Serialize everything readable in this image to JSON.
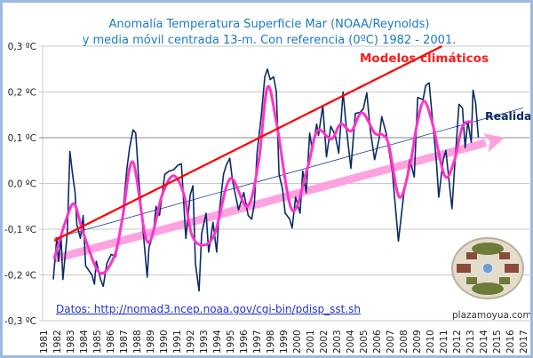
{
  "chart_data": {
    "type": "line",
    "title": "Anomalía Temperatura Superficie Mar (NOAA/Reynolds)",
    "subtitle": "y media móvil centrada 13-m. Con referencia (0ºC) 1982 - 2001.",
    "xlim": [
      1981,
      2017
    ],
    "ylim": [
      -0.3,
      0.3
    ],
    "x_ticks": [
      "1981",
      "1982",
      "1983",
      "1984",
      "1985",
      "1986",
      "1987",
      "1988",
      "1989",
      "1990",
      "1991",
      "1992",
      "1993",
      "1994",
      "1995",
      "1996",
      "1997",
      "1998",
      "1999",
      "2000",
      "2001",
      "2002",
      "2003",
      "2004",
      "2005",
      "2006",
      "2007",
      "2008",
      "2009",
      "2010",
      "2011",
      "2012",
      "2013",
      "2014",
      "2015",
      "2016",
      "2017"
    ],
    "y_ticks": [
      {
        "value": 0.3,
        "label": "0,3 ºC"
      },
      {
        "value": 0.2,
        "label": "0,2 ºC"
      },
      {
        "value": 0.1,
        "label": "0,1 ºC"
      },
      {
        "value": 0.0,
        "label": "0,0 ºC"
      },
      {
        "value": -0.1,
        "label": "-0,1 ºC"
      },
      {
        "value": -0.2,
        "label": "-0,2 ºC"
      },
      {
        "value": -0.3,
        "label": "-0,3 ºC"
      }
    ],
    "grid": "horizontal",
    "colors": {
      "monthly": "#0b2a66",
      "moving_average": "#ff33cc",
      "models": "#ff0000",
      "reality_arrow": "#ff99dd",
      "trend": "#1f3f8f",
      "title": "#1a7ac8",
      "border": "#9db9e3"
    },
    "series": [
      {
        "key": "monthly",
        "points": [
          [
            1981.73,
            -0.21
          ],
          [
            1981.99,
            -0.12
          ],
          [
            1982.12,
            -0.17
          ],
          [
            1982.32,
            -0.12
          ],
          [
            1982.45,
            -0.21
          ],
          [
            1982.78,
            -0.11
          ],
          [
            1982.98,
            0.07
          ],
          [
            1983.18,
            0.02
          ],
          [
            1983.37,
            -0.02
          ],
          [
            1983.5,
            -0.09
          ],
          [
            1983.77,
            -0.12
          ],
          [
            1983.97,
            -0.07
          ],
          [
            1984.16,
            -0.18
          ],
          [
            1984.63,
            -0.2
          ],
          [
            1984.82,
            -0.22
          ],
          [
            1984.96,
            -0.17
          ],
          [
            1985.28,
            -0.21
          ],
          [
            1985.48,
            -0.225
          ],
          [
            1985.75,
            -0.175
          ],
          [
            1986.08,
            -0.155
          ],
          [
            1986.41,
            -0.16
          ],
          [
            1986.74,
            -0.11
          ],
          [
            1986.93,
            -0.07
          ],
          [
            1987.26,
            0.033
          ],
          [
            1987.46,
            0.078
          ],
          [
            1987.72,
            0.117
          ],
          [
            1987.92,
            0.11
          ],
          [
            1988.12,
            0.02
          ],
          [
            1988.45,
            -0.097
          ],
          [
            1988.78,
            -0.205
          ],
          [
            1988.91,
            -0.14
          ],
          [
            1989.24,
            -0.11
          ],
          [
            1989.44,
            -0.05
          ],
          [
            1989.7,
            -0.07
          ],
          [
            1990.1,
            0.02
          ],
          [
            1990.43,
            0.027
          ],
          [
            1990.76,
            0.03
          ],
          [
            1991.09,
            0.04
          ],
          [
            1991.35,
            0.043
          ],
          [
            1991.68,
            -0.12
          ],
          [
            1992.01,
            -0.025
          ],
          [
            1992.21,
            -0.005
          ],
          [
            1992.4,
            -0.175
          ],
          [
            1992.67,
            -0.235
          ],
          [
            1992.87,
            -0.11
          ],
          [
            1993.2,
            -0.065
          ],
          [
            1993.39,
            -0.15
          ],
          [
            1993.72,
            -0.085
          ],
          [
            1993.99,
            -0.15
          ],
          [
            1994.18,
            -0.065
          ],
          [
            1994.51,
            0.02
          ],
          [
            1994.71,
            0.04
          ],
          [
            1994.98,
            0.055
          ],
          [
            1995.17,
            0.008
          ],
          [
            1995.63,
            -0.058
          ],
          [
            1996.03,
            -0.02
          ],
          [
            1996.36,
            -0.07
          ],
          [
            1996.62,
            -0.078
          ],
          [
            1996.82,
            -0.045
          ],
          [
            1997.02,
            0.065
          ],
          [
            1997.35,
            0.15
          ],
          [
            1997.61,
            0.233
          ],
          [
            1997.81,
            0.25
          ],
          [
            1998.01,
            0.227
          ],
          [
            1998.27,
            0.233
          ],
          [
            1998.47,
            0.2
          ],
          [
            1998.67,
            0.02
          ],
          [
            1998.93,
            -0.012
          ],
          [
            1999.13,
            -0.065
          ],
          [
            1999.46,
            -0.077
          ],
          [
            1999.66,
            -0.097
          ],
          [
            1999.92,
            -0.03
          ],
          [
            2000.25,
            -0.065
          ],
          [
            2000.45,
            0.027
          ],
          [
            2000.71,
            -0.02
          ],
          [
            2000.97,
            0.11
          ],
          [
            2001.17,
            0.072
          ],
          [
            2001.5,
            0.13
          ],
          [
            2001.63,
            0.105
          ],
          [
            2001.96,
            0.17
          ],
          [
            2002.23,
            0.058
          ],
          [
            2002.56,
            0.125
          ],
          [
            2002.89,
            0.105
          ],
          [
            2003.15,
            0.066
          ],
          [
            2003.48,
            0.2
          ],
          [
            2003.74,
            0.117
          ],
          [
            2004.07,
            0.033
          ],
          [
            2004.4,
            0.153
          ],
          [
            2004.73,
            0.155
          ],
          [
            2005.0,
            0.163
          ],
          [
            2005.26,
            0.198
          ],
          [
            2005.52,
            0.117
          ],
          [
            2005.85,
            0.052
          ],
          [
            2006.18,
            0.097
          ],
          [
            2006.38,
            0.146
          ],
          [
            2006.71,
            0.11
          ],
          [
            2007.17,
            0.027
          ],
          [
            2007.63,
            -0.126
          ],
          [
            2008.03,
            -0.025
          ],
          [
            2008.49,
            0.052
          ],
          [
            2008.82,
            0.014
          ],
          [
            2009.08,
            0.188
          ],
          [
            2009.48,
            0.183
          ],
          [
            2009.68,
            0.214
          ],
          [
            2009.94,
            0.22
          ],
          [
            2010.14,
            0.155
          ],
          [
            2010.47,
            0.052
          ],
          [
            2010.66,
            -0.03
          ],
          [
            2010.99,
            0.052
          ],
          [
            2011.19,
            0.072
          ],
          [
            2011.65,
            -0.055
          ],
          [
            2011.85,
            0.033
          ],
          [
            2012.18,
            0.173
          ],
          [
            2012.44,
            0.165
          ],
          [
            2012.64,
            0.078
          ],
          [
            2012.84,
            0.136
          ],
          [
            2013.1,
            0.09
          ],
          [
            2013.23,
            0.204
          ],
          [
            2013.43,
            0.175
          ],
          [
            2013.63,
            0.1
          ]
        ]
      },
      {
        "key": "moving_average",
        "points": [
          [
            1981.8,
            -0.165
          ],
          [
            1982.65,
            -0.083
          ],
          [
            1983.3,
            -0.045
          ],
          [
            1984.0,
            -0.11
          ],
          [
            1985.2,
            -0.195
          ],
          [
            1986.3,
            -0.16
          ],
          [
            1986.9,
            -0.08
          ],
          [
            1987.7,
            0.047
          ],
          [
            1988.8,
            -0.128
          ],
          [
            1989.9,
            -0.025
          ],
          [
            1990.75,
            0.017
          ],
          [
            1991.55,
            -0.025
          ],
          [
            1992.1,
            -0.11
          ],
          [
            1992.9,
            -0.135
          ],
          [
            1993.85,
            -0.11
          ],
          [
            1995.0,
            0.01
          ],
          [
            1996.3,
            -0.05
          ],
          [
            1997.15,
            0.05
          ],
          [
            1997.8,
            0.21
          ],
          [
            1998.5,
            0.13
          ],
          [
            1999.65,
            -0.058
          ],
          [
            2000.8,
            0.033
          ],
          [
            2001.55,
            0.115
          ],
          [
            2002.6,
            0.097
          ],
          [
            2003.3,
            0.13
          ],
          [
            2004.1,
            0.115
          ],
          [
            2004.9,
            0.155
          ],
          [
            2005.85,
            0.11
          ],
          [
            2006.4,
            0.107
          ],
          [
            2006.9,
            0.085
          ],
          [
            2007.7,
            -0.03
          ],
          [
            2008.5,
            0.04
          ],
          [
            2009.0,
            0.125
          ],
          [
            2009.55,
            0.18
          ],
          [
            2010.2,
            0.13
          ],
          [
            2011.1,
            0.017
          ],
          [
            2011.8,
            0.047
          ],
          [
            2012.45,
            0.125
          ],
          [
            2013.2,
            0.135
          ]
        ]
      }
    ],
    "trend_lines": [
      {
        "key": "models",
        "label": "Modelos climáticos",
        "from": [
          1981.8,
          -0.125
        ],
        "to": [
          2010.9,
          0.3
        ]
      },
      {
        "key": "reality_arrow",
        "label": "Realidad",
        "from": [
          1981.8,
          -0.165
        ],
        "to": [
          2015.6,
          0.1
        ]
      },
      {
        "key": "trend",
        "from": [
          1981.8,
          -0.12
        ],
        "to": [
          2017,
          0.165
        ]
      }
    ]
  },
  "annotations": {
    "source": "Datos: http://nomad3.ncep.noaa.gov/cgi-bin/pdisp_sst.sh",
    "brand": "plazamoyua.com"
  }
}
